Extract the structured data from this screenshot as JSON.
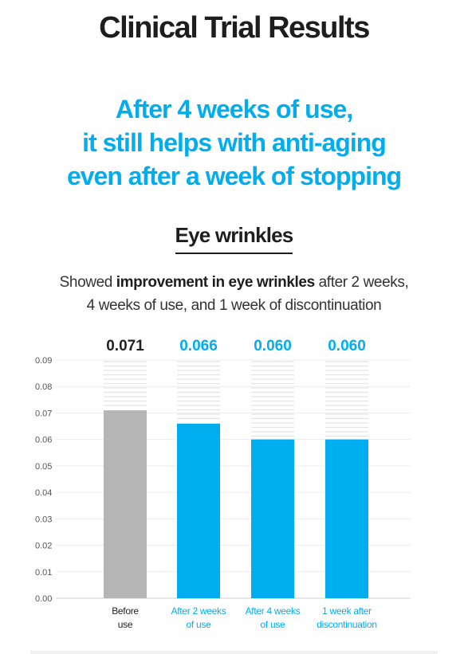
{
  "title": "Clinical Trial Results",
  "headline": [
    "After 4 weeks of use,",
    "it still helps with anti-aging",
    "even after a week of stopping"
  ],
  "subheading": "Eye wrinkles",
  "description": {
    "line1_prefix": "Showed ",
    "line1_bold": "improvement in eye wrinkles",
    "line1_suffix": " after 2 weeks,",
    "line2": "4 weeks of use, and 1 week of discontinuation"
  },
  "colors": {
    "accent": "#00aeef",
    "baseline_bar": "#b5b5b5",
    "baseline_label": "#222222"
  },
  "chart_data": {
    "type": "bar",
    "categories": [
      [
        "Before",
        "use"
      ],
      [
        "After 2 weeks",
        "of use"
      ],
      [
        "After 4 weeks",
        "of use"
      ],
      [
        "1 week after",
        "discontinuation"
      ]
    ],
    "values": [
      0.071,
      0.066,
      0.06,
      0.06
    ],
    "data_labels": [
      "0.071",
      "0.066",
      "0.060",
      "0.060"
    ],
    "yticks": [
      "0.00",
      "0.01",
      "0.02",
      "0.03",
      "0.04",
      "0.05",
      "0.06",
      "0.07",
      "0.08",
      "0.09"
    ],
    "ylim": [
      0,
      0.09
    ],
    "title": "",
    "xlabel": "",
    "ylabel": "",
    "grid": true,
    "legend": "none"
  }
}
